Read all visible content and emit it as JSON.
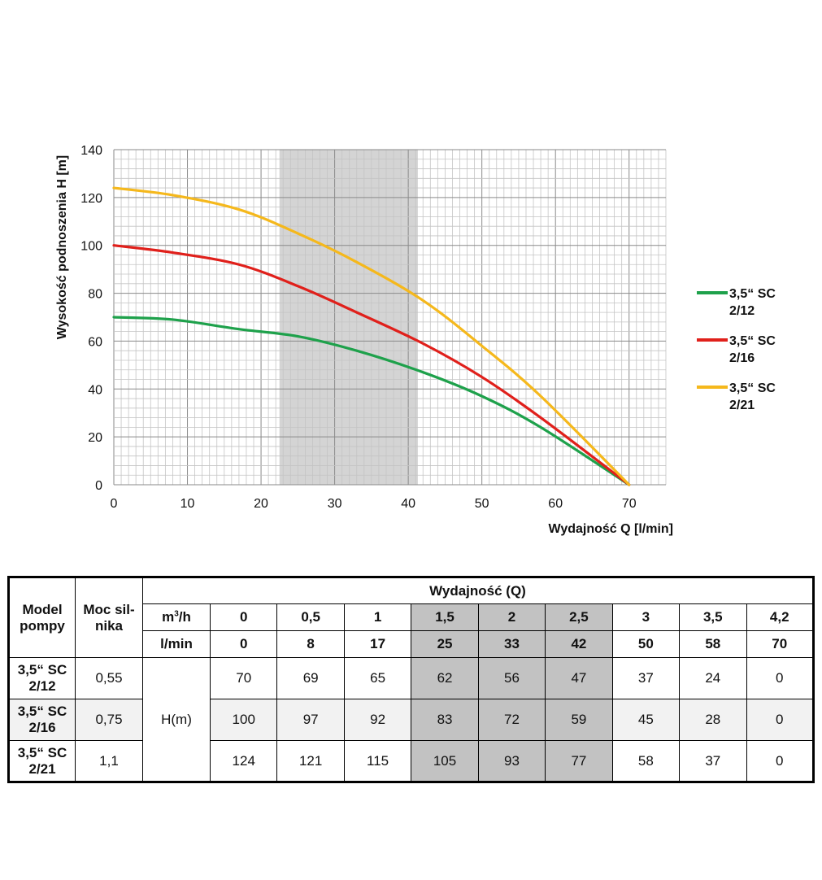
{
  "chart_data": {
    "type": "line",
    "xlabel": "Wydajność Q [l/min]",
    "ylabel": "Wysokość podnoszenia H [m]",
    "xlim": [
      0,
      75
    ],
    "ylim": [
      0,
      140
    ],
    "x_ticks": [
      0,
      10,
      20,
      30,
      40,
      50,
      60,
      70
    ],
    "y_ticks": [
      0,
      20,
      40,
      60,
      80,
      100,
      120,
      140
    ],
    "grid": true,
    "highlight_band": [
      22.5,
      41.3
    ],
    "legend_position": "right",
    "series": [
      {
        "name": "3,5“ SC 2/12",
        "color": "#1ea14b",
        "x": [
          0,
          8,
          17,
          25,
          33,
          42,
          50,
          58,
          70
        ],
        "y": [
          70,
          69,
          65,
          62,
          56,
          47,
          37,
          24,
          0
        ]
      },
      {
        "name": "3,5“ SC 2/16",
        "color": "#e0201b",
        "x": [
          0,
          8,
          17,
          25,
          33,
          42,
          50,
          58,
          70
        ],
        "y": [
          100,
          97,
          92,
          83,
          72,
          59,
          45,
          28,
          0
        ]
      },
      {
        "name": "3,5“ SC 2/21",
        "color": "#f5b81c",
        "x": [
          0,
          8,
          17,
          25,
          33,
          42,
          50,
          58,
          70
        ],
        "y": [
          124,
          121,
          115,
          105,
          93,
          77,
          58,
          37,
          0
        ]
      }
    ]
  },
  "table": {
    "model_header": "Model pompy",
    "power_header": "Moc sil-nika",
    "flow_header": "Wydajność (Q)",
    "unit_m3h_base": "m",
    "unit_m3h_sup": "3",
    "unit_m3h_rest": "/h",
    "unit_lmin": "l/min",
    "m3h": [
      "0",
      "0,5",
      "1",
      "1,5",
      "2",
      "2,5",
      "3",
      "3,5",
      "4,2"
    ],
    "lmin": [
      "0",
      "8",
      "17",
      "25",
      "33",
      "42",
      "50",
      "58",
      "70"
    ],
    "h_label": "H(m)",
    "rows": [
      {
        "model_line1": "3,5“ SC",
        "model_line2": "2/12",
        "power": "0,55",
        "values": [
          "70",
          "69",
          "65",
          "62",
          "56",
          "47",
          "37",
          "24",
          "0"
        ]
      },
      {
        "model_line1": "3,5“ SC",
        "model_line2": "2/16",
        "power": "0,75",
        "values": [
          "100",
          "97",
          "92",
          "83",
          "72",
          "59",
          "45",
          "28",
          "0"
        ]
      },
      {
        "model_line1": "3,5“ SC",
        "model_line2": "2/21",
        "power": "1,1",
        "values": [
          "124",
          "121",
          "115",
          "105",
          "93",
          "77",
          "58",
          "37",
          "0"
        ]
      }
    ]
  }
}
